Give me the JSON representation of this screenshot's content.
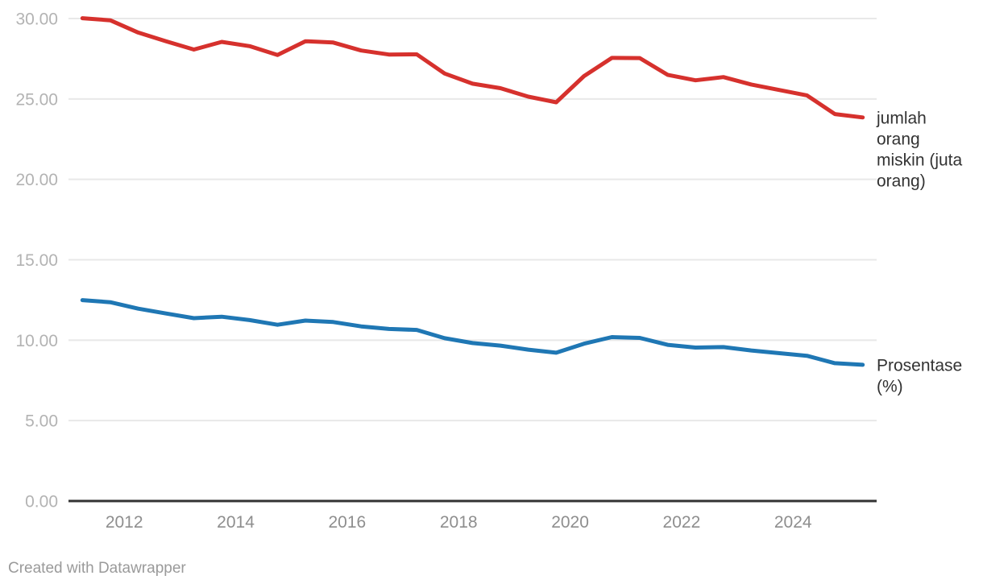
{
  "footer": {
    "attribution": "Created with Datawrapper"
  },
  "chart_data": {
    "type": "line",
    "title": "",
    "xlabel": "",
    "ylabel": "",
    "x_domain": [
      2011.0,
      2025.5
    ],
    "y_domain": [
      0,
      30
    ],
    "grid": "horizontal-only",
    "legend_position": "right-of-line-ends",
    "x_ticks": [
      2012,
      2014,
      2016,
      2018,
      2020,
      2022,
      2024
    ],
    "x_tick_labels": [
      "2012",
      "2014",
      "2016",
      "2018",
      "2020",
      "2022",
      "2024"
    ],
    "y_ticks": [
      0,
      5,
      10,
      15,
      20,
      25,
      30
    ],
    "y_tick_labels": [
      "0.00",
      "5.00",
      "10.00",
      "15.00",
      "20.00",
      "25.00",
      "30.00"
    ],
    "x": [
      2011.25,
      2011.75,
      2012.25,
      2012.75,
      2013.25,
      2013.75,
      2014.25,
      2014.75,
      2015.25,
      2015.75,
      2016.25,
      2016.75,
      2017.25,
      2017.75,
      2018.25,
      2018.75,
      2019.25,
      2019.75,
      2020.25,
      2020.75,
      2021.25,
      2021.75,
      2022.25,
      2022.75,
      2023.25,
      2024.25,
      2024.75,
      2025.25
    ],
    "series": [
      {
        "name": "jumlah orang miskin (juta orang)",
        "label_lines": [
          "jumlah",
          "orang",
          "miskin (juta",
          "orang)"
        ],
        "color": "#d6312d",
        "values": [
          30.02,
          29.89,
          29.13,
          28.59,
          28.07,
          28.55,
          28.28,
          27.73,
          28.59,
          28.51,
          28.01,
          27.76,
          27.77,
          26.58,
          25.95,
          25.67,
          25.14,
          24.79,
          26.42,
          27.55,
          27.54,
          26.5,
          26.16,
          26.36,
          25.9,
          25.22,
          24.06,
          23.85
        ]
      },
      {
        "name": "Prosentase (%)",
        "label_lines": [
          "Prosentase",
          "(%)"
        ],
        "color": "#1f77b4",
        "values": [
          12.49,
          12.36,
          11.96,
          11.66,
          11.37,
          11.46,
          11.25,
          10.96,
          11.22,
          11.13,
          10.86,
          10.7,
          10.64,
          10.12,
          9.82,
          9.66,
          9.41,
          9.22,
          9.78,
          10.19,
          10.14,
          9.71,
          9.54,
          9.57,
          9.36,
          9.03,
          8.57,
          8.47
        ]
      }
    ],
    "colors": {
      "red_series": "#d6312d",
      "blue_series": "#1f77b4",
      "gridline": "#e8e8e8",
      "baseline": "#333333",
      "y_tick_text": "#b3b3b3",
      "x_tick_text": "#8e8e8e",
      "series_label_text": "#333333",
      "footer_text": "#9a9a9a",
      "background": "#ffffff"
    }
  }
}
